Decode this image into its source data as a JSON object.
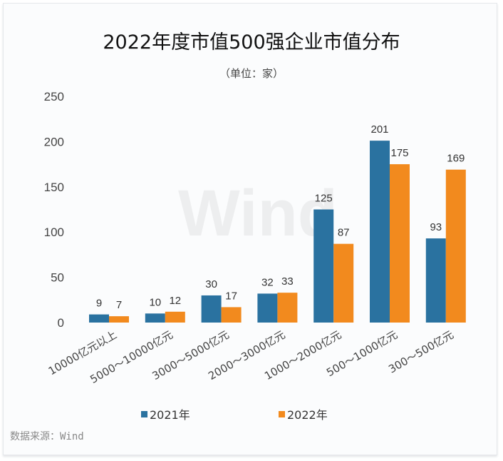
{
  "chart_data": {
    "type": "bar",
    "title": "2022年度市值500强企业市值分布",
    "subtitle": "（单位：家）",
    "categories": [
      "10000亿元以上",
      "5000～10000亿元",
      "3000～5000亿元",
      "2000～3000亿元",
      "1000～2000亿元",
      "500～1000亿元",
      "300～500亿元"
    ],
    "series": [
      {
        "name": "2021年",
        "color": "#2a72a0",
        "values": [
          9,
          10,
          30,
          32,
          125,
          201,
          93
        ]
      },
      {
        "name": "2022年",
        "color": "#f28a1e",
        "values": [
          7,
          12,
          17,
          33,
          87,
          175,
          169
        ]
      }
    ],
    "ylim": [
      0,
      250
    ],
    "yticks": [
      0,
      50,
      100,
      150,
      200,
      250
    ],
    "grid": false,
    "legend": "bottom",
    "data_labels": true
  },
  "source": "数据来源：Wind",
  "watermark": "Wind"
}
